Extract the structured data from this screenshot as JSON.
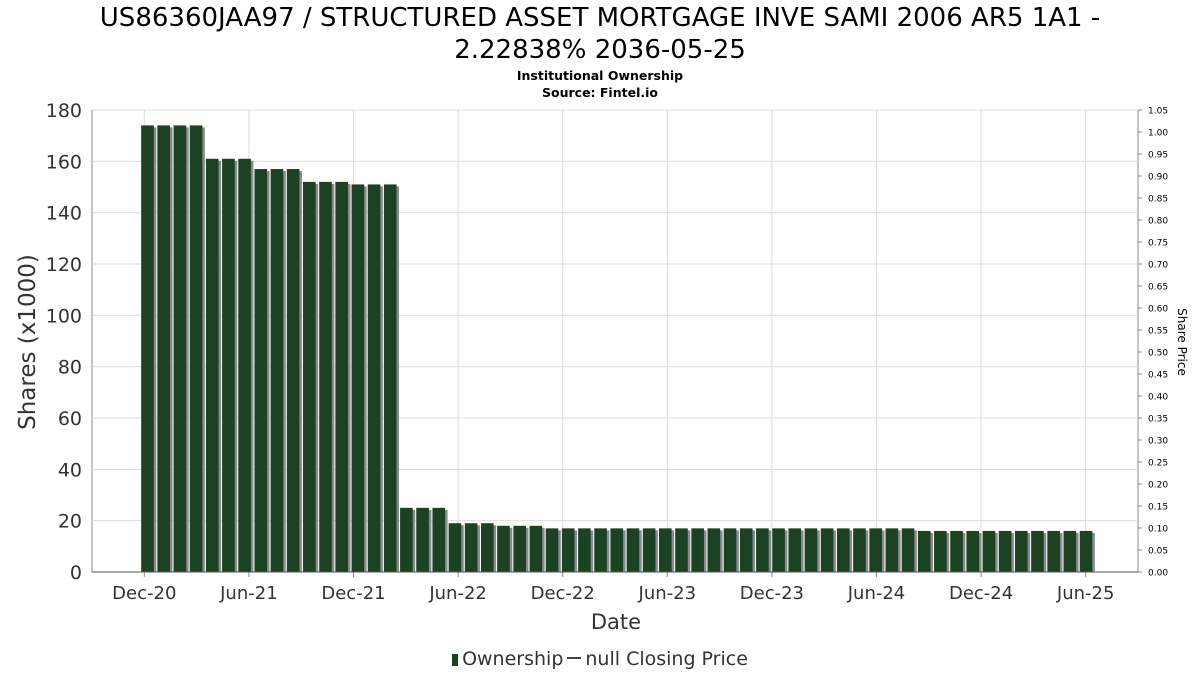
{
  "header": {
    "title_line1": "US86360JAA97 / STRUCTURED ASSET MORTGAGE INVE SAMI 2006 AR5 1A1 -",
    "title_line2": "2.22838% 2036-05-25",
    "subtitle": "Institutional Ownership",
    "source": "Source: Fintel.io"
  },
  "legend": {
    "ownership_label": "Ownership",
    "price_label": "null Closing Price"
  },
  "colors": {
    "bar": "#1b4223",
    "bar_shadow": "#8a8a8a",
    "grid": "#dddddd",
    "axis": "#888888"
  },
  "chart_data": {
    "type": "bar",
    "xlabel": "Date",
    "ylabel": "Shares (x1000)",
    "y2label": "Share Price",
    "ylim": [
      0,
      180
    ],
    "y_ticks": [
      0,
      20,
      40,
      60,
      80,
      100,
      120,
      140,
      160,
      180
    ],
    "y2lim": [
      0,
      1.05
    ],
    "y2_ticks": [
      "0.00",
      "0.05",
      "0.10",
      "0.15",
      "0.20",
      "0.25",
      "0.30",
      "0.35",
      "0.40",
      "0.45",
      "0.50",
      "0.55",
      "0.60",
      "0.65",
      "0.70",
      "0.75",
      "0.80",
      "0.85",
      "0.90",
      "0.95",
      "1.00",
      "1.05"
    ],
    "x_ticks": [
      "Dec-20",
      "Jun-21",
      "Dec-21",
      "Jun-22",
      "Dec-22",
      "Jun-23",
      "Dec-23",
      "Jun-24",
      "Dec-24",
      "Jun-25"
    ],
    "x_start": "2020-09",
    "x_end": "2025-09",
    "grid": true,
    "legend_position": "bottom",
    "series": [
      {
        "name": "Ownership",
        "values": [
          174,
          174,
          174,
          174,
          161,
          161,
          161,
          157,
          157,
          157,
          152,
          152,
          152,
          151,
          151,
          151,
          25,
          25,
          25,
          19,
          19,
          19,
          18,
          18,
          18,
          17,
          17,
          17,
          17,
          17,
          17,
          17,
          17,
          17,
          17,
          17,
          17,
          17,
          17,
          17,
          17,
          17,
          17,
          17,
          17,
          17,
          17,
          17,
          16,
          16,
          16,
          16,
          16,
          16,
          16,
          16,
          16,
          16,
          16
        ]
      }
    ]
  }
}
